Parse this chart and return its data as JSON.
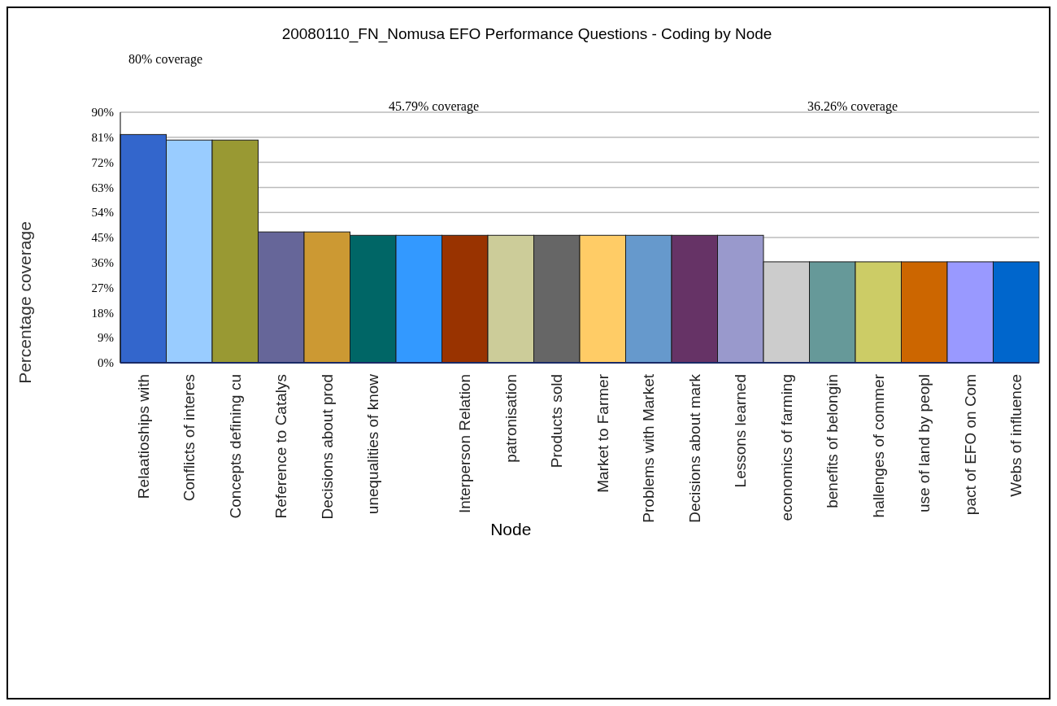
{
  "chart_data": {
    "type": "bar",
    "title": "20080110_FN_Nomusa EFO Performance Questions - Coding by Node",
    "xlabel": "Node",
    "ylabel": "Percentage coverage",
    "annotations": [
      "80%  coverage",
      "45.79%  coverage",
      "36.26%  coverage"
    ],
    "categories": [
      "Relaatioships with",
      "Conflicts of interes",
      "Concepts defining cu",
      "Reference to Catalys",
      "Decisions about prod",
      "unequalities of know",
      null,
      "Interperson Relation",
      "patronisation",
      "Products sold",
      "Market to Farmer",
      "Problems with Market",
      "Decisions about mark",
      "Lessons learned",
      "economics of farming",
      "benefits of belongin",
      "hallenges of commer",
      "use of land by peopl",
      "pact of EFO on Com",
      "Webs of influence"
    ],
    "values": [
      82,
      80,
      80,
      47,
      47,
      45.79,
      45.79,
      45.79,
      45.79,
      45.79,
      45.79,
      45.79,
      45.79,
      45.79,
      36.26,
      36.26,
      36.26,
      36.26,
      36.26,
      36.26
    ],
    "colors": [
      "#3366cc",
      "#99ccff",
      "#999933",
      "#666699",
      "#cc9933",
      "#006666",
      "#3399ff",
      "#993300",
      "#cccc99",
      "#666666",
      "#ffcc66",
      "#6699cc",
      "#663366",
      "#9999cc",
      "#cccccc",
      "#669999",
      "#cccc66",
      "#cc6600",
      "#9999ff",
      "#0066cc"
    ],
    "ylim": [
      0,
      90
    ],
    "yticks": [
      {
        "value": 0,
        "label": "0%"
      },
      {
        "value": 9,
        "label": "9%"
      },
      {
        "value": 18,
        "label": "18%"
      },
      {
        "value": 27,
        "label": "27%"
      },
      {
        "value": 36,
        "label": "36%"
      },
      {
        "value": 45,
        "label": "45%"
      },
      {
        "value": 54,
        "label": "54%"
      },
      {
        "value": 63,
        "label": "63%"
      },
      {
        "value": 72,
        "label": "72%"
      },
      {
        "value": 81,
        "label": "81%"
      },
      {
        "value": 90,
        "label": "90%"
      }
    ],
    "grid": "y"
  }
}
